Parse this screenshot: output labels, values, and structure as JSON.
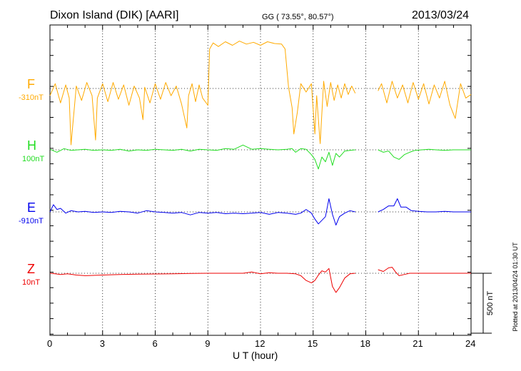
{
  "header": {
    "station": "Dixon Island (DIK)  [AARI]",
    "coords": "GG ( 73.55°,  80.57°)",
    "date": "2013/03/24"
  },
  "footer": {
    "plotted": "Plotted at 2013/04/24 01:30 UT",
    "scale_label": "500 nT"
  },
  "chart_data": {
    "type": "line",
    "title": "Dixon Island (DIK)  [AARI]",
    "xlabel": "U T (hour)",
    "xlim": [
      0,
      24
    ],
    "xticks": [
      "0",
      "3",
      "6",
      "9",
      "12",
      "15",
      "18",
      "21",
      "24"
    ],
    "grid": true,
    "gap_hours": [
      17.5,
      18.7
    ],
    "series": [
      {
        "name": "F",
        "baseline": "-310nT",
        "color": "#ffaa00",
        "x": [
          0,
          0.3,
          0.6,
          0.9,
          1.1,
          1.2,
          1.5,
          1.8,
          2.1,
          2.4,
          2.6,
          2.7,
          3.0,
          3.3,
          3.6,
          3.9,
          4.2,
          4.5,
          4.8,
          5.1,
          5.3,
          5.4,
          5.7,
          6.0,
          6.3,
          6.6,
          6.9,
          7.2,
          7.5,
          7.8,
          7.9,
          8.1,
          8.3,
          8.5,
          8.7,
          9.0,
          9.1,
          9.3,
          9.6,
          10.0,
          10.4,
          10.8,
          11.2,
          11.6,
          12.0,
          12.4,
          12.8,
          13.2,
          13.4,
          13.6,
          13.8,
          13.9,
          14.1,
          14.3,
          14.6,
          14.9,
          15.1,
          15.2,
          15.4,
          15.6,
          15.8,
          16.0,
          16.2,
          16.4,
          16.6,
          16.8,
          17.0,
          17.2,
          17.4,
          18.7,
          18.9,
          19.2,
          19.5,
          19.8,
          20.1,
          20.4,
          20.7,
          21.0,
          21.3,
          21.6,
          21.9,
          22.2,
          22.5,
          22.8,
          23.1,
          23.4,
          23.7,
          24.0
        ],
        "values": [
          -60,
          40,
          -120,
          30,
          -80,
          -470,
          20,
          -100,
          50,
          -60,
          -430,
          -80,
          40,
          -110,
          50,
          -90,
          30,
          -140,
          20,
          -80,
          -260,
          10,
          -120,
          40,
          -90,
          50,
          -60,
          20,
          -130,
          -330,
          -60,
          40,
          -110,
          30,
          -80,
          -140,
          330,
          380,
          350,
          390,
          360,
          395,
          370,
          385,
          360,
          390,
          375,
          370,
          330,
          10,
          -160,
          -380,
          -200,
          40,
          -30,
          40,
          -380,
          -60,
          -460,
          60,
          -150,
          50,
          -100,
          30,
          -80,
          40,
          -50,
          20,
          -40,
          -20,
          40,
          -120,
          60,
          -80,
          30,
          -120,
          50,
          -90,
          40,
          -130,
          30,
          -80,
          60,
          -140,
          -250,
          40,
          -80,
          -50
        ]
      },
      {
        "name": "H",
        "baseline": "100nT",
        "color": "#22dd22",
        "x": [
          0,
          0.4,
          0.8,
          1.2,
          1.6,
          2.0,
          2.5,
          3.0,
          3.5,
          4.0,
          4.5,
          5.0,
          5.5,
          6.0,
          6.5,
          7.0,
          7.5,
          8.0,
          8.5,
          9.0,
          9.5,
          10.0,
          10.5,
          11.0,
          11.5,
          12.0,
          12.5,
          13.0,
          13.5,
          13.8,
          14.0,
          14.3,
          14.6,
          14.9,
          15.1,
          15.3,
          15.5,
          15.7,
          15.9,
          16.1,
          16.3,
          16.5,
          16.8,
          17.1,
          17.4,
          18.7,
          19.0,
          19.3,
          19.6,
          19.9,
          20.2,
          20.5,
          20.8,
          21.2,
          21.6,
          22.0,
          22.5,
          23.0,
          23.5,
          24.0
        ],
        "values": [
          5,
          -20,
          10,
          -5,
          0,
          5,
          -5,
          0,
          -5,
          5,
          -10,
          0,
          -5,
          5,
          0,
          -5,
          5,
          -10,
          5,
          0,
          -5,
          10,
          5,
          40,
          5,
          10,
          5,
          0,
          5,
          10,
          -20,
          10,
          5,
          -40,
          -80,
          -160,
          -60,
          -100,
          -20,
          -130,
          -30,
          -60,
          -10,
          -5,
          0,
          0,
          -20,
          -10,
          -60,
          -80,
          -40,
          -20,
          -5,
          0,
          5,
          0,
          -5,
          0,
          0,
          0
        ]
      },
      {
        "name": "E",
        "baseline": "-910nT",
        "color": "#0000ee",
        "x": [
          0,
          0.2,
          0.4,
          0.6,
          0.9,
          1.2,
          1.6,
          2.0,
          2.5,
          3.0,
          3.5,
          4.0,
          4.5,
          5.0,
          5.5,
          6.0,
          6.5,
          7.0,
          7.5,
          8.0,
          8.5,
          9.0,
          9.5,
          10.0,
          10.5,
          11.0,
          11.5,
          12.0,
          12.5,
          13.0,
          13.5,
          14.0,
          14.3,
          14.6,
          14.9,
          15.1,
          15.3,
          15.5,
          15.7,
          15.9,
          16.1,
          16.3,
          16.5,
          16.8,
          17.1,
          17.4,
          18.7,
          19.0,
          19.3,
          19.6,
          19.8,
          20.0,
          20.3,
          20.6,
          21.0,
          21.5,
          22.0,
          22.5,
          23.0,
          23.5,
          24.0
        ],
        "values": [
          0,
          60,
          20,
          30,
          -10,
          10,
          0,
          5,
          -5,
          0,
          -5,
          5,
          0,
          -10,
          10,
          0,
          -5,
          -10,
          -5,
          -25,
          -5,
          -10,
          -5,
          -15,
          -10,
          -15,
          -10,
          -5,
          -20,
          -5,
          -10,
          -20,
          -10,
          20,
          -10,
          -60,
          -100,
          -70,
          -40,
          110,
          -20,
          -110,
          -40,
          -10,
          10,
          0,
          0,
          20,
          50,
          50,
          110,
          40,
          40,
          10,
          5,
          0,
          0,
          5,
          0,
          0,
          0
        ]
      },
      {
        "name": "Z",
        "baseline": "10nT",
        "color": "#ee0000",
        "x": [
          0,
          0.3,
          0.6,
          1.0,
          1.5,
          2.0,
          3.0,
          4.0,
          5.0,
          6.0,
          7.0,
          8.0,
          9.0,
          10.0,
          11.0,
          11.5,
          12.0,
          12.5,
          13.0,
          13.5,
          14.0,
          14.3,
          14.6,
          14.9,
          15.1,
          15.3,
          15.5,
          15.7,
          15.9,
          16.1,
          16.3,
          16.5,
          16.8,
          17.1,
          17.4,
          18.7,
          19.0,
          19.3,
          19.5,
          19.7,
          19.9,
          20.2,
          20.5,
          21.0,
          22.0,
          23.0,
          24.0
        ],
        "values": [
          0,
          -5,
          -10,
          -5,
          -15,
          -20,
          -15,
          -10,
          -8,
          -6,
          -5,
          -2,
          0,
          0,
          0,
          10,
          -5,
          5,
          0,
          0,
          -5,
          -20,
          -60,
          -80,
          -60,
          -15,
          20,
          10,
          40,
          -110,
          -160,
          -120,
          -40,
          -5,
          0,
          30,
          15,
          45,
          50,
          10,
          -20,
          -10,
          0,
          0,
          0,
          0,
          0
        ]
      }
    ]
  }
}
